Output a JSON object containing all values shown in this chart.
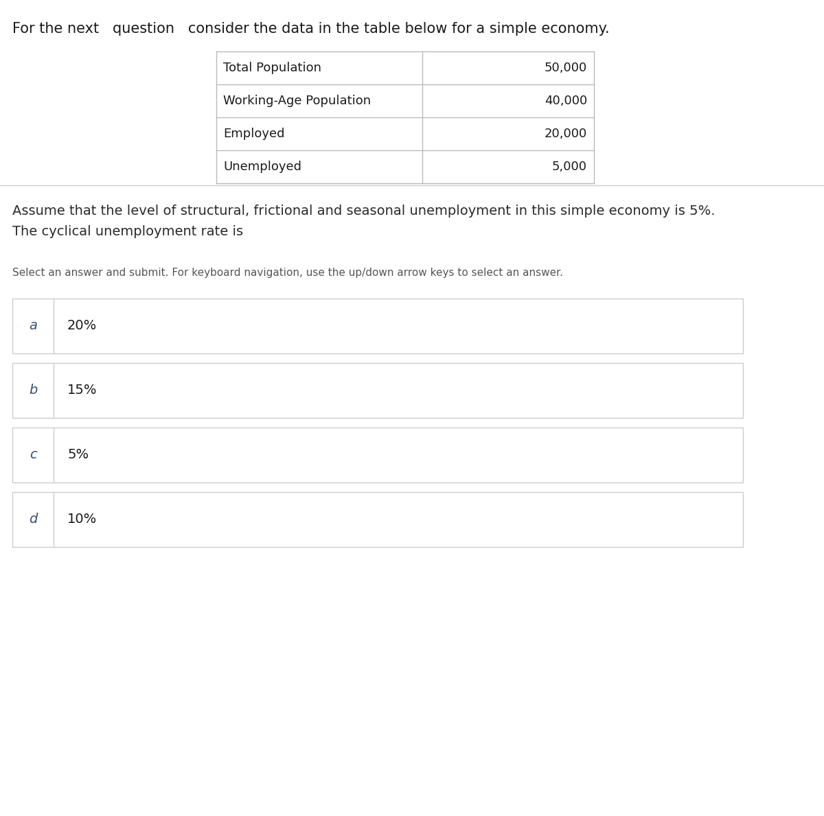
{
  "header_text": "For the next   question   consider the data in the table below for a simple economy.",
  "table_rows": [
    [
      "Total Population",
      "50,000"
    ],
    [
      "Working-Age Population",
      "40,000"
    ],
    [
      "Employed",
      "20,000"
    ],
    [
      "Unemployed",
      "5,000"
    ]
  ],
  "assumption_text_line1": "Assume that the level of structural, frictional and seasonal unemployment in this simple economy is 5%.",
  "assumption_text_line2": "The cyclical unemployment rate is",
  "nav_text": "Select an answer and submit. For keyboard navigation, use the up/down arrow keys to select an answer.",
  "options": [
    {
      "label": "a",
      "value": "20%"
    },
    {
      "label": "b",
      "value": "15%"
    },
    {
      "label": "c",
      "value": "5%"
    },
    {
      "label": "d",
      "value": "10%"
    }
  ],
  "bg_color": "#ffffff",
  "text_color": "#1a1a1a",
  "table_border_color": "#bbbbbb",
  "option_border_color": "#cccccc",
  "option_label_color": "#3a5070",
  "assumption_text_color": "#2a2a2a",
  "nav_text_color": "#555555",
  "header_text_color": "#1a1a1a",
  "divider_color": "#cccccc",
  "header_fontsize": 15,
  "table_fontsize": 13,
  "assumption_fontsize": 14,
  "nav_fontsize": 11,
  "option_fontsize": 14,
  "option_label_fontsize": 14
}
